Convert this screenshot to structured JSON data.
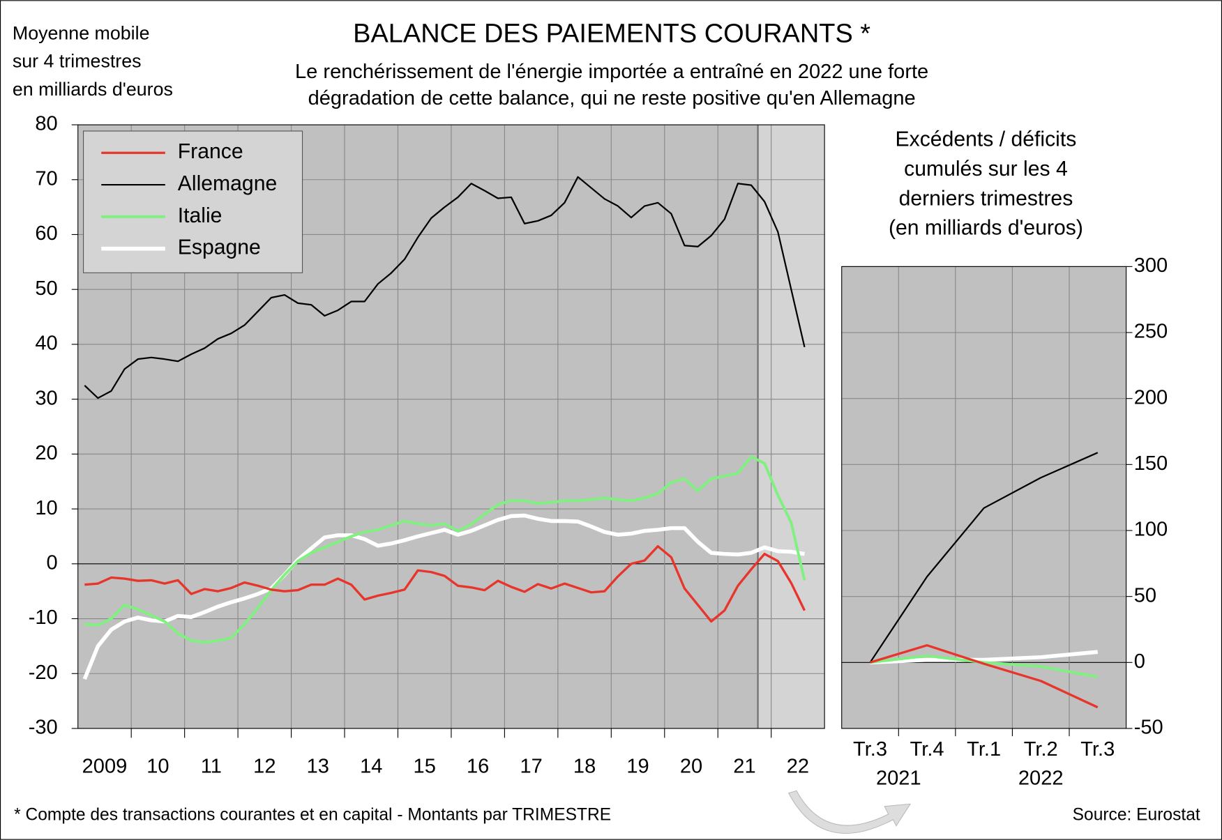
{
  "chart_data": [
    {
      "type": "line",
      "title": "BALANCE DES PAIEMENTS COURANTS *",
      "subtitle": [
        "Le renchérissement de l'énergie importée a entraîné en 2022 une forte",
        "dégradation de cette balance, qui ne reste positive qu'en Allemagne"
      ],
      "y_axis_label": [
        "Moyenne mobile",
        "sur 4 trimestres",
        "en milliards d'euros"
      ],
      "x": [
        2009.125,
        2009.375,
        2009.625,
        2009.875,
        2010.125,
        2010.375,
        2010.625,
        2010.875,
        2011.125,
        2011.375,
        2011.625,
        2011.875,
        2012.125,
        2012.375,
        2012.625,
        2012.875,
        2013.125,
        2013.375,
        2013.625,
        2013.875,
        2014.125,
        2014.375,
        2014.625,
        2014.875,
        2015.125,
        2015.375,
        2015.625,
        2015.875,
        2016.125,
        2016.375,
        2016.625,
        2016.875,
        2017.125,
        2017.375,
        2017.625,
        2017.875,
        2018.125,
        2018.375,
        2018.625,
        2018.875,
        2019.125,
        2019.375,
        2019.625,
        2019.875,
        2020.125,
        2020.375,
        2020.625,
        2020.875,
        2021.125,
        2021.375,
        2021.625,
        2021.875,
        2022.125,
        2022.375,
        2022.625
      ],
      "xlim": [
        2009,
        2023
      ],
      "xticks": [
        2010,
        2011,
        2012,
        2013,
        2014,
        2015,
        2016,
        2017,
        2018,
        2019,
        2020,
        2021,
        2022
      ],
      "x_labels": [
        {
          "value": 2009.5,
          "label": "2009"
        },
        {
          "value": 2010.5,
          "label": "10"
        },
        {
          "value": 2011.5,
          "label": "11"
        },
        {
          "value": 2012.5,
          "label": "12"
        },
        {
          "value": 2013.5,
          "label": "13"
        },
        {
          "value": 2014.5,
          "label": "14"
        },
        {
          "value": 2015.5,
          "label": "15"
        },
        {
          "value": 2016.5,
          "label": "16"
        },
        {
          "value": 2017.5,
          "label": "17"
        },
        {
          "value": 2018.5,
          "label": "18"
        },
        {
          "value": 2019.5,
          "label": "19"
        },
        {
          "value": 2020.5,
          "label": "20"
        },
        {
          "value": 2021.5,
          "label": "21"
        },
        {
          "value": 2022.5,
          "label": "22"
        }
      ],
      "highlight_xlim": [
        2021.75,
        2023
      ],
      "ylim": [
        -30,
        80
      ],
      "yticks": [
        -30,
        -20,
        -10,
        0,
        10,
        20,
        30,
        40,
        50,
        60,
        70,
        80
      ],
      "grid": true,
      "legend": "top-left",
      "series": [
        {
          "name": "France",
          "color": "#e8352b",
          "width": 3,
          "values": [
            -3.8,
            -3.6,
            -2.5,
            -2.7,
            -3.1,
            -3,
            -3.6,
            -3,
            -5.5,
            -4.6,
            -5,
            -4.4,
            -3.4,
            -4,
            -4.7,
            -5,
            -4.8,
            -3.8,
            -3.8,
            -2.7,
            -3.8,
            -6.5,
            -5.8,
            -5.3,
            -4.7,
            -1.2,
            -1.5,
            -2.2,
            -4,
            -4.3,
            -4.8,
            -3.1,
            -4.2,
            -5.1,
            -3.7,
            -4.5,
            -3.6,
            -4.4,
            -5.2,
            -5,
            -2.3,
            0,
            0.6,
            3.2,
            1.2,
            -4.5,
            -7.5,
            -10.5,
            -8.5,
            -4,
            -1,
            1.8,
            0.5,
            -3.5,
            -8.5
          ]
        },
        {
          "name": "Allemagne",
          "color": "#000000",
          "width": 2,
          "values": [
            32.5,
            30.2,
            31.5,
            35.5,
            37.3,
            37.6,
            37.3,
            36.9,
            38.2,
            39.3,
            41,
            42,
            43.5,
            46,
            48.5,
            49,
            47.5,
            47.2,
            45.2,
            46.2,
            47.8,
            47.8,
            51,
            53,
            55.5,
            59.5,
            63,
            65,
            66.8,
            69.3,
            68,
            66.6,
            66.8,
            62,
            62.5,
            63.5,
            65.8,
            70.5,
            68.5,
            66.5,
            65.2,
            63.1,
            65.2,
            65.8,
            63.8,
            58,
            57.8,
            59.8,
            62.8,
            69.3,
            69,
            66,
            60.5,
            50,
            39.5
          ]
        },
        {
          "name": "Italie",
          "color": "#80f080",
          "width": 3.5,
          "values": [
            -11,
            -11.2,
            -10,
            -7.5,
            -8.3,
            -9.4,
            -10.5,
            -12.7,
            -14,
            -14.3,
            -14,
            -13.5,
            -11,
            -8,
            -4.8,
            -2,
            0.5,
            2,
            3,
            4,
            5,
            5.8,
            6.2,
            7,
            7.8,
            7.3,
            7,
            7.3,
            6,
            7.2,
            9,
            10.8,
            11.5,
            11.5,
            11,
            11.2,
            11.5,
            11.5,
            11.7,
            12,
            11.7,
            11.5,
            12,
            12.8,
            14.8,
            15.5,
            13.3,
            15.5,
            16,
            16.5,
            19.5,
            18.3,
            12.5,
            7.5,
            -3
          ]
        },
        {
          "name": "Espagne",
          "color": "#ffffff",
          "width": 5,
          "values": [
            -21,
            -15,
            -12,
            -10.5,
            -9.8,
            -10.3,
            -10.5,
            -9.5,
            -9.7,
            -8.8,
            -7.8,
            -7,
            -6.3,
            -5.5,
            -4.5,
            -2,
            0.7,
            2.8,
            4.8,
            5.2,
            5.2,
            4.5,
            3.3,
            3.7,
            4.3,
            5,
            5.6,
            6.2,
            5.3,
            6,
            7,
            8,
            8.7,
            8.8,
            8.2,
            7.8,
            7.8,
            7.7,
            6.8,
            5.8,
            5.3,
            5.5,
            6,
            6.2,
            6.5,
            6.5,
            4,
            2,
            1.8,
            1.7,
            2,
            3,
            2.3,
            2.2,
            1.8
          ]
        }
      ],
      "footnote": "* Compte des transactions courantes et en capital - Montants par TRIMESTRE",
      "source": "Source: Eurostat"
    },
    {
      "type": "line",
      "title": [
        "Excédents / déficits",
        "cumulés sur les 4",
        "derniers trimestres",
        "(en milliards d'euros)"
      ],
      "categories": [
        "Tr.3",
        "Tr.4",
        "Tr.1",
        "Tr.2",
        "Tr.3"
      ],
      "year_labels": [
        "2021",
        "2022"
      ],
      "ylim": [
        -50,
        300
      ],
      "yticks": [
        -50,
        0,
        50,
        100,
        150,
        200,
        250,
        300
      ],
      "grid": true,
      "series": [
        {
          "name": "France",
          "color": "#e8352b",
          "width": 3,
          "values": [
            0,
            13,
            -1,
            -14,
            -34
          ]
        },
        {
          "name": "Allemagne",
          "color": "#000000",
          "width": 2,
          "values": [
            0,
            65,
            117,
            140,
            159
          ]
        },
        {
          "name": "Italie",
          "color": "#80f080",
          "width": 3.5,
          "values": [
            0,
            5,
            0,
            -3,
            -11
          ]
        },
        {
          "name": "Espagne",
          "color": "#ffffff",
          "width": 5,
          "values": [
            0,
            2,
            2,
            4,
            8
          ]
        }
      ]
    }
  ]
}
